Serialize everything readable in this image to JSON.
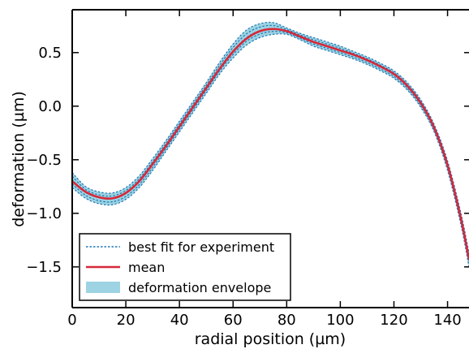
{
  "chart_data": {
    "type": "line",
    "title": "",
    "xlabel": "radial position (µm)",
    "ylabel": "deformation (µm)",
    "xlim": [
      0,
      148
    ],
    "ylim": [
      -1.88,
      0.9
    ],
    "xticks": [
      0,
      20,
      40,
      60,
      80,
      100,
      120,
      140
    ],
    "xtick_labels": [
      "0",
      "20",
      "40",
      "60",
      "80",
      "100",
      "120",
      "140"
    ],
    "yticks": [
      0.5,
      0.0,
      -0.5,
      -1.0,
      -1.5
    ],
    "ytick_labels": [
      "0.5",
      "0.0",
      "−0.5",
      "−1.0",
      "−1.5"
    ],
    "grid": false,
    "legend_position": "lower-left",
    "colors": {
      "fit": "#1f77b4",
      "mean": "#d62839",
      "envelope": "#9dd3e2"
    },
    "legend": [
      {
        "key": "fit",
        "label": "best fit for experiment",
        "style": "dotted-line"
      },
      {
        "key": "mean",
        "label": "mean",
        "style": "solid-line"
      },
      {
        "key": "envelope",
        "label": "deformation envelope",
        "style": "patch"
      }
    ],
    "x": [
      0,
      5,
      10,
      15,
      20,
      25,
      30,
      35,
      40,
      45,
      50,
      55,
      60,
      65,
      70,
      75,
      80,
      85,
      90,
      95,
      100,
      105,
      110,
      115,
      120,
      125,
      130,
      135,
      140,
      145,
      148
    ],
    "series": [
      {
        "key": "mean",
        "name": "mean",
        "values": [
          -0.7,
          -0.8,
          -0.85,
          -0.86,
          -0.81,
          -0.7,
          -0.54,
          -0.37,
          -0.19,
          -0.01,
          0.17,
          0.35,
          0.51,
          0.63,
          0.7,
          0.72,
          0.7,
          0.65,
          0.6,
          0.56,
          0.52,
          0.48,
          0.43,
          0.37,
          0.3,
          0.19,
          0.03,
          -0.2,
          -0.55,
          -1.05,
          -1.43
        ]
      },
      {
        "key": "envelope",
        "name": "deformation envelope",
        "upper": [
          -0.62,
          -0.75,
          -0.8,
          -0.81,
          -0.76,
          -0.65,
          -0.49,
          -0.32,
          -0.14,
          0.04,
          0.22,
          0.41,
          0.58,
          0.71,
          0.77,
          0.78,
          0.73,
          0.68,
          0.64,
          0.6,
          0.56,
          0.51,
          0.46,
          0.4,
          0.33,
          0.22,
          0.06,
          -0.17,
          -0.51,
          -1.0,
          -1.37
        ],
        "lower": [
          -0.76,
          -0.86,
          -0.91,
          -0.92,
          -0.87,
          -0.76,
          -0.6,
          -0.42,
          -0.24,
          -0.06,
          0.12,
          0.3,
          0.45,
          0.57,
          0.64,
          0.67,
          0.67,
          0.62,
          0.56,
          0.52,
          0.48,
          0.44,
          0.39,
          0.33,
          0.26,
          0.15,
          -0.01,
          -0.24,
          -0.6,
          -1.11,
          -1.5
        ]
      }
    ]
  }
}
